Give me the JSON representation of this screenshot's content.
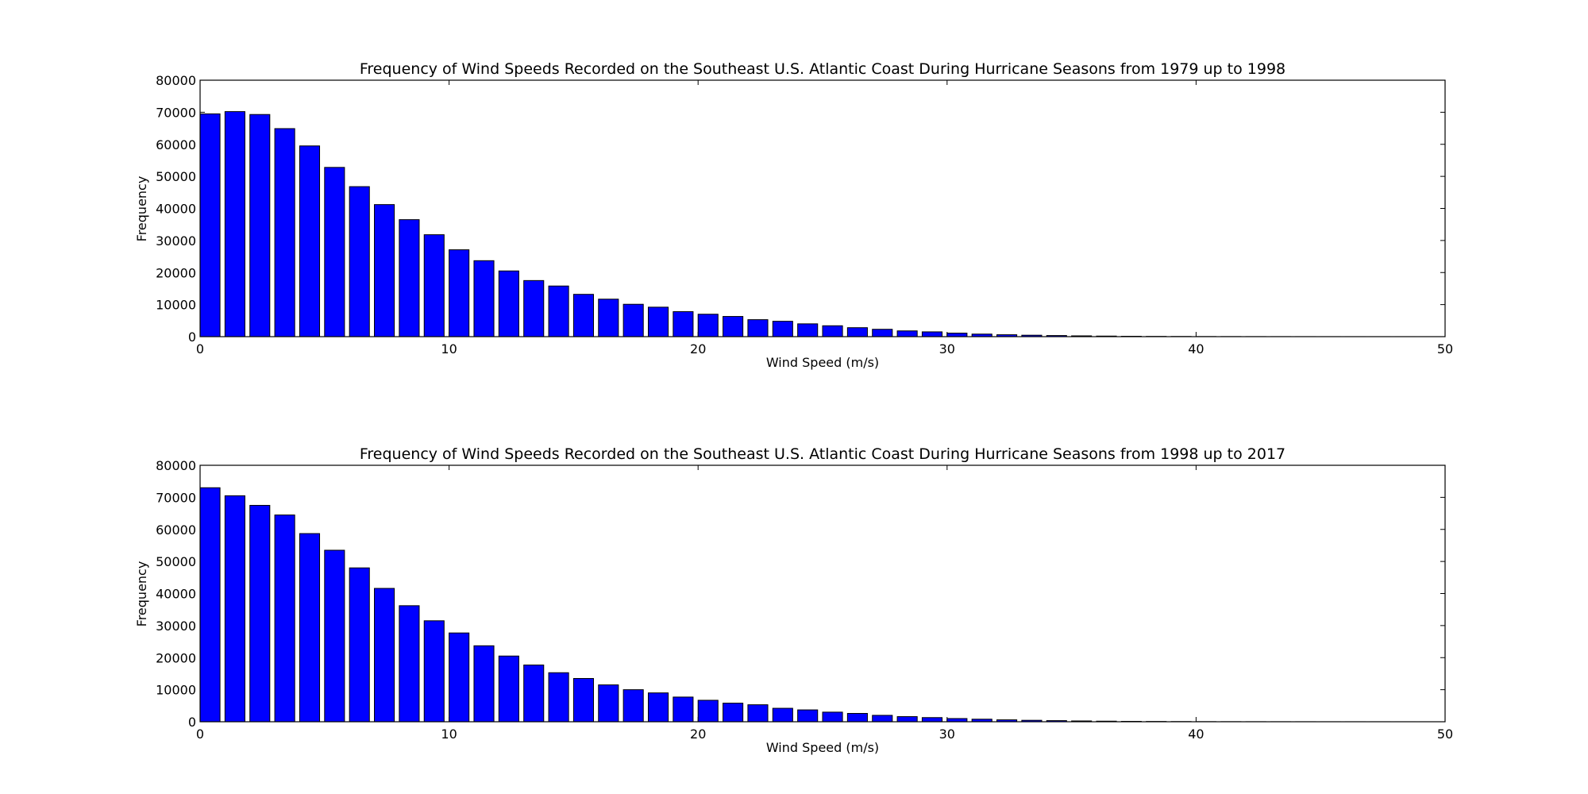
{
  "chart_data": [
    {
      "type": "bar",
      "title": "Frequency of Wind Speeds Recorded on the Southeast U.S. Atlantic Coast During Hurricane Seasons from 1979 up to 1998",
      "xlabel": "Wind Speed (m/s)",
      "ylabel": "Frequency",
      "xlim": [
        0,
        50
      ],
      "ylim": [
        0,
        80000
      ],
      "xticks": [
        "0",
        "10",
        "20",
        "30",
        "40",
        "50"
      ],
      "yticks": [
        "0",
        "10000",
        "20000",
        "30000",
        "40000",
        "50000",
        "60000",
        "70000",
        "80000"
      ],
      "bar_color": "#0000ff",
      "bin_width": 1,
      "bar_width": 0.8,
      "x": [
        0,
        1,
        2,
        3,
        4,
        5,
        6,
        7,
        8,
        9,
        10,
        11,
        12,
        13,
        14,
        15,
        16,
        17,
        18,
        19,
        20,
        21,
        22,
        23,
        24,
        25,
        26,
        27,
        28,
        29,
        30,
        31,
        32,
        33,
        34,
        35,
        36,
        37,
        38,
        39,
        40,
        41,
        42,
        43,
        44,
        45,
        46,
        47,
        48,
        49
      ],
      "values": [
        69500,
        70200,
        69300,
        64900,
        59500,
        52800,
        46800,
        41200,
        36500,
        31800,
        27100,
        23700,
        20500,
        17500,
        15800,
        13200,
        11700,
        10100,
        9200,
        7800,
        7000,
        6300,
        5300,
        4800,
        4000,
        3400,
        2800,
        2300,
        1800,
        1500,
        1100,
        800,
        600,
        450,
        350,
        250,
        180,
        120,
        80,
        60,
        40,
        30,
        20,
        15,
        10,
        8,
        5,
        4,
        3,
        2
      ]
    },
    {
      "type": "bar",
      "title": "Frequency of Wind Speeds Recorded on the Southeast U.S. Atlantic Coast During Hurricane Seasons from 1998 up to 2017",
      "xlabel": "Wind Speed (m/s)",
      "ylabel": "Frequency",
      "xlim": [
        0,
        50
      ],
      "ylim": [
        0,
        80000
      ],
      "xticks": [
        "0",
        "10",
        "20",
        "30",
        "40",
        "50"
      ],
      "yticks": [
        "0",
        "10000",
        "20000",
        "30000",
        "40000",
        "50000",
        "60000",
        "70000",
        "80000"
      ],
      "bar_color": "#0000ff",
      "bin_width": 1,
      "bar_width": 0.8,
      "x": [
        0,
        1,
        2,
        3,
        4,
        5,
        6,
        7,
        8,
        9,
        10,
        11,
        12,
        13,
        14,
        15,
        16,
        17,
        18,
        19,
        20,
        21,
        22,
        23,
        24,
        25,
        26,
        27,
        28,
        29,
        30,
        31,
        32,
        33,
        34,
        35,
        36,
        37,
        38,
        39,
        40,
        41,
        42,
        43,
        44,
        45,
        46,
        47,
        48,
        49
      ],
      "values": [
        73000,
        70500,
        67500,
        64500,
        58700,
        53500,
        48000,
        41600,
        36200,
        31500,
        27700,
        23700,
        20500,
        17700,
        15300,
        13500,
        11500,
        10000,
        9000,
        7700,
        6700,
        5800,
        5300,
        4200,
        3700,
        3000,
        2600,
        2000,
        1600,
        1300,
        1000,
        800,
        600,
        450,
        350,
        250,
        180,
        120,
        90,
        60,
        40,
        30,
        20,
        15,
        10,
        8,
        5,
        4,
        3,
        2
      ]
    }
  ]
}
